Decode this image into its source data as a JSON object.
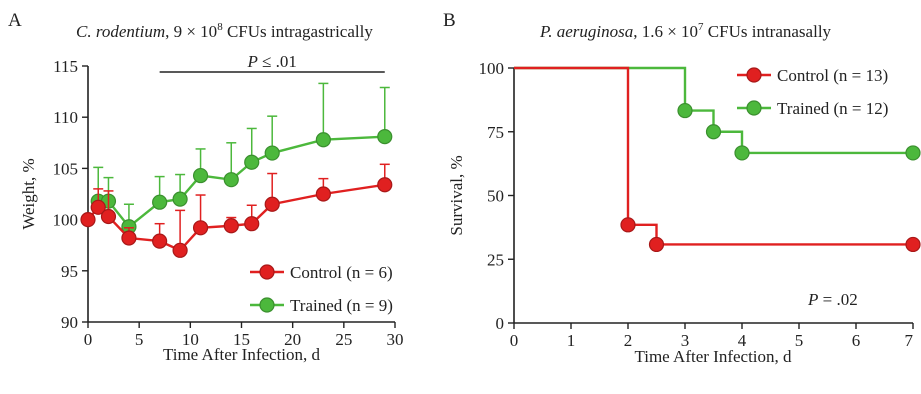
{
  "colors": {
    "control": "#e02020",
    "trained": "#4cb83c",
    "axis": "#222222"
  },
  "chart_data": [
    {
      "type": "line",
      "panel_letter": "A",
      "title": {
        "italic": "C. rodentium",
        "rest": ", 9 × 10",
        "sup": "8",
        "tail": " CFUs intragastrically"
      },
      "xlabel": "Time After Infection, d",
      "ylabel": "Weight, %",
      "xlim": [
        0,
        30
      ],
      "ylim": [
        90,
        115
      ],
      "xticks": [
        0,
        5,
        10,
        15,
        20,
        25,
        30
      ],
      "yticks": [
        90,
        95,
        100,
        105,
        110,
        115
      ],
      "significance": {
        "label_italic": "P",
        "label_rest": " ≤ .01",
        "x_range": [
          7,
          29
        ]
      },
      "legend_position": "bottom-right",
      "series": [
        {
          "name": "Control (n = 6)",
          "key": "control",
          "x": [
            0,
            1,
            2,
            4,
            7,
            9,
            11,
            14,
            16,
            18,
            23,
            29
          ],
          "y": [
            100.0,
            101.2,
            100.3,
            98.2,
            97.9,
            97.0,
            99.2,
            99.4,
            99.6,
            101.5,
            102.5,
            103.4
          ],
          "err": [
            0,
            1.8,
            2.5,
            1.0,
            1.7,
            3.9,
            3.2,
            0.8,
            1.8,
            3.0,
            1.5,
            2.0
          ]
        },
        {
          "name": "Trained (n = 9)",
          "key": "trained",
          "x": [
            1,
            2,
            4,
            7,
            9,
            11,
            14,
            16,
            18,
            23,
            29
          ],
          "y": [
            101.8,
            101.8,
            99.3,
            101.7,
            102.0,
            104.3,
            103.9,
            105.6,
            106.5,
            107.8,
            108.1
          ],
          "err": [
            3.3,
            2.3,
            2.2,
            2.5,
            2.4,
            2.6,
            3.6,
            3.3,
            3.6,
            5.5,
            4.8
          ]
        }
      ]
    },
    {
      "type": "line",
      "subtype": "survival-step",
      "panel_letter": "B",
      "title": {
        "italic": "P. aeruginosa",
        "rest": ", 1.6 × 10",
        "sup": "7",
        "tail": " CFUs intranasally"
      },
      "xlabel": "Time After Infection, d",
      "ylabel": "Survival, %",
      "xlim": [
        0,
        7
      ],
      "ylim": [
        0,
        100
      ],
      "xticks": [
        0,
        1,
        2,
        3,
        4,
        5,
        6,
        7
      ],
      "yticks": [
        0,
        25,
        50,
        75,
        100
      ],
      "annotation": {
        "label_italic": "P",
        "label_rest": " = .02"
      },
      "legend_position": "top-right",
      "series": [
        {
          "name": "Control (n = 13)",
          "key": "control",
          "steps": [
            [
              0,
              100
            ],
            [
              2,
              38.5
            ],
            [
              2.5,
              30.8
            ],
            [
              7,
              30.8
            ]
          ],
          "markers": [
            [
              2,
              38.5
            ],
            [
              2.5,
              30.8
            ],
            [
              7,
              30.8
            ]
          ]
        },
        {
          "name": "Trained (n = 12)",
          "key": "trained",
          "steps": [
            [
              0,
              100
            ],
            [
              3,
              83.3
            ],
            [
              3.5,
              75
            ],
            [
              4,
              66.7
            ],
            [
              7,
              66.7
            ]
          ],
          "markers": [
            [
              3,
              83.3
            ],
            [
              3.5,
              75
            ],
            [
              4,
              66.7
            ],
            [
              7,
              66.7
            ]
          ]
        }
      ]
    }
  ]
}
